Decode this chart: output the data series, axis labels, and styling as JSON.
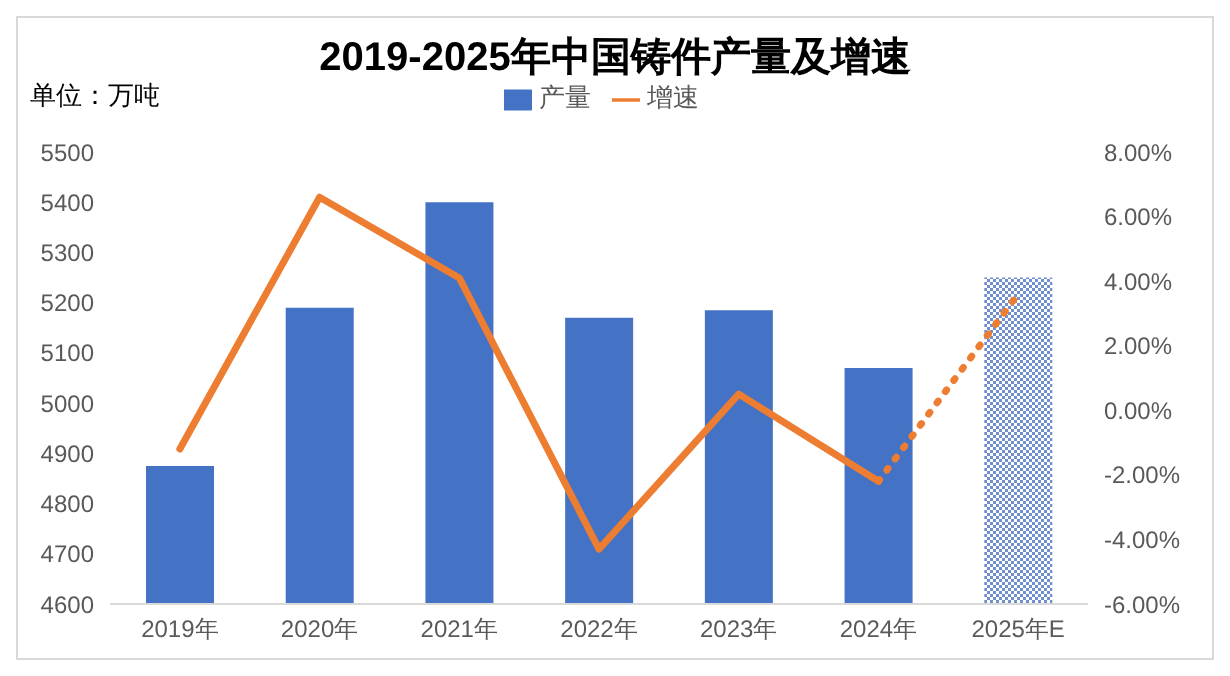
{
  "chart_data": {
    "type": "bar",
    "title": "2019-2025年中国铸件产量及增速",
    "annotations": [
      "单位：万吨"
    ],
    "categories": [
      "2019年",
      "2020年",
      "2021年",
      "2022年",
      "2023年",
      "2024年",
      "2025年E"
    ],
    "series": [
      {
        "name": "产量",
        "color": "#4472c4",
        "colors": [
          "#4472c4",
          "#4472c4",
          "#4472c4",
          "#4472c4",
          "#4472c4",
          "#4472c4",
          "#6f8fcf"
        ],
        "values": [
          4875,
          5190,
          5400,
          5170,
          5185,
          5070,
          5250
        ]
      },
      {
        "name": "增速",
        "type": "line",
        "axis": "y2",
        "color": "#ed7d31",
        "line_style": "solid",
        "values": [
          -1.2,
          6.6,
          4.1,
          -4.3,
          0.5,
          -2.2,
          null
        ]
      },
      {
        "type": "line",
        "axis": "y2",
        "color": "#ed7d31",
        "line_style": "dotted",
        "values": [
          null,
          null,
          null,
          null,
          null,
          -2.2,
          3.6
        ]
      }
    ],
    "ylim": [
      4600,
      5500
    ],
    "yticks": [
      4600,
      4700,
      4800,
      4900,
      5000,
      5100,
      5200,
      5300,
      5400,
      5500
    ],
    "y2lim": [
      -6,
      8
    ],
    "y2ticks": [
      {
        "value": -6,
        "label": "-6.00%"
      },
      {
        "value": -4,
        "label": "-4.00%"
      },
      {
        "value": -2,
        "label": "-2.00%"
      },
      {
        "value": 0,
        "label": "0.00%"
      },
      {
        "value": 2,
        "label": "2.00%"
      },
      {
        "value": 4,
        "label": "4.00%"
      },
      {
        "value": 6,
        "label": "6.00%"
      },
      {
        "value": 8,
        "label": "8.00%"
      }
    ],
    "legend": "top",
    "grid": false,
    "marker": "none"
  }
}
